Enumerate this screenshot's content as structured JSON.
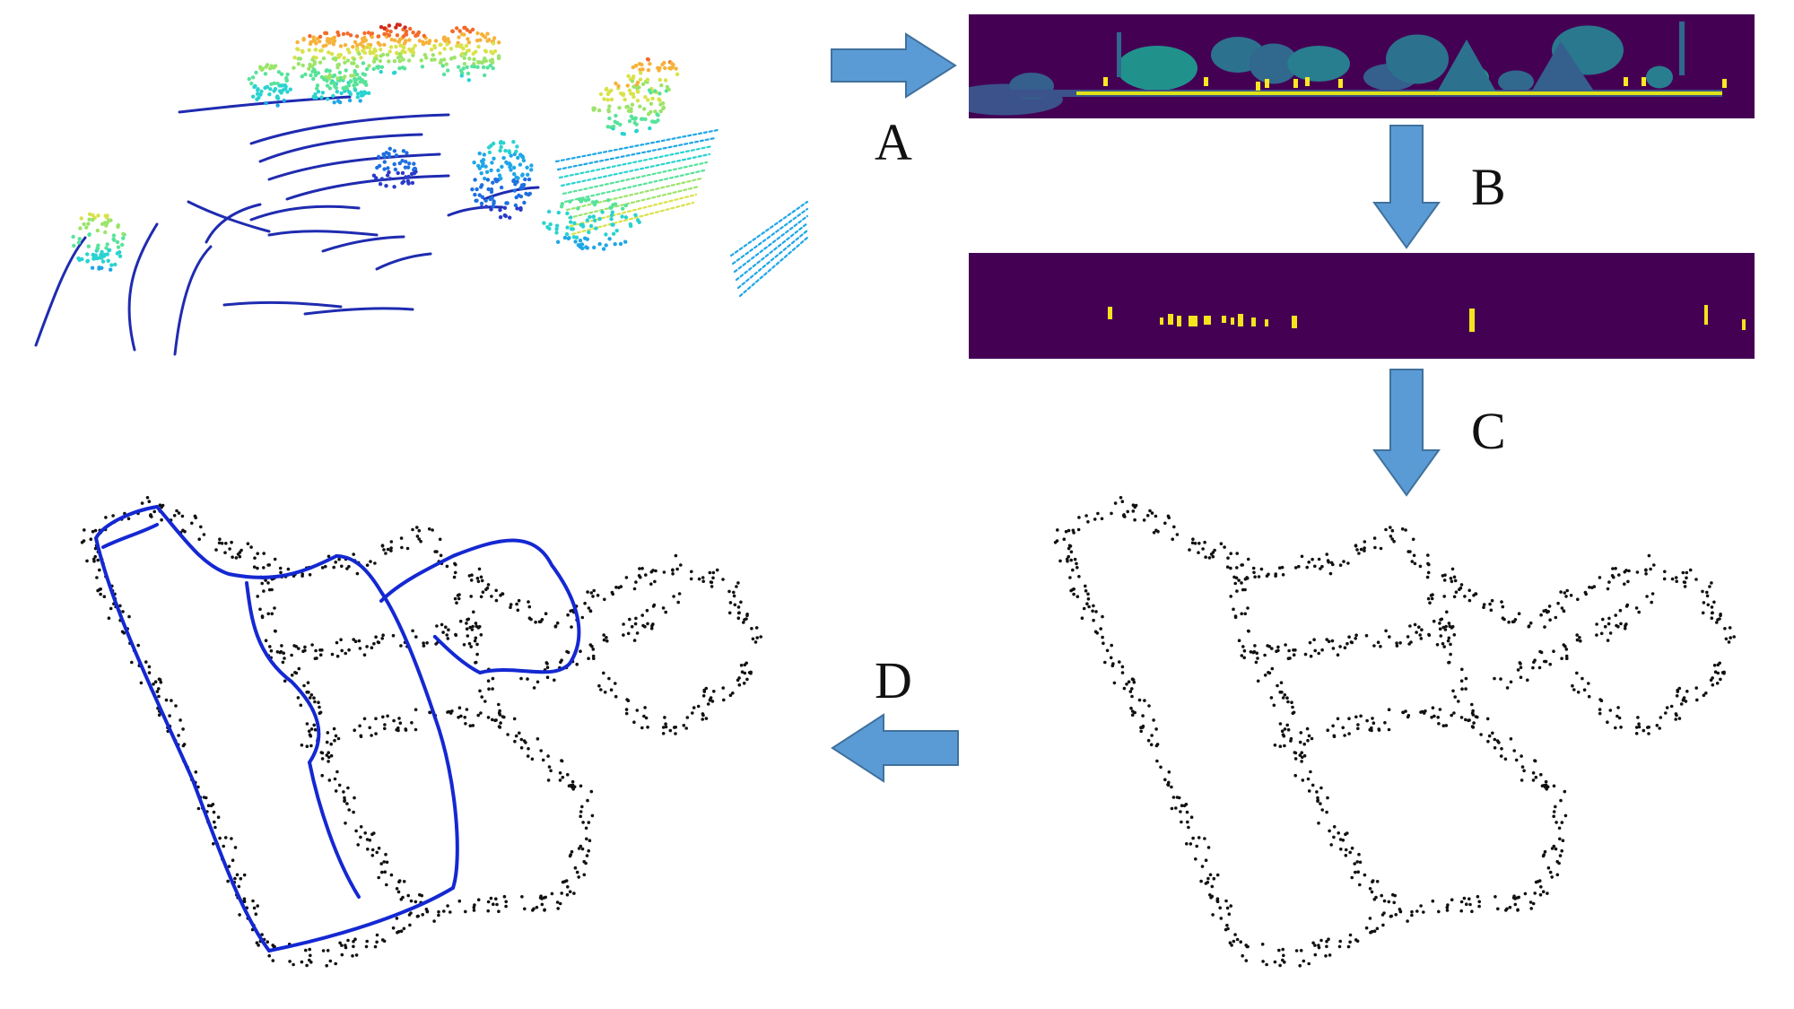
{
  "steps": [
    {
      "id": "A",
      "label": "A"
    },
    {
      "id": "B",
      "label": "B"
    },
    {
      "id": "C",
      "label": "C"
    },
    {
      "id": "D",
      "label": "D"
    }
  ],
  "colors": {
    "arrow_fill": "#5b9bd5",
    "arrow_stroke": "#41719c",
    "range_image_bg": "#440154",
    "mask_bg": "#440154",
    "mask_highlight": "#f5e31e",
    "trajectory": "#1428d2",
    "map_points": "#111111",
    "cloud_ground": "#1f2bb0"
  },
  "icons": [
    "arrow-right-icon",
    "arrow-down-icon",
    "arrow-left-icon"
  ]
}
